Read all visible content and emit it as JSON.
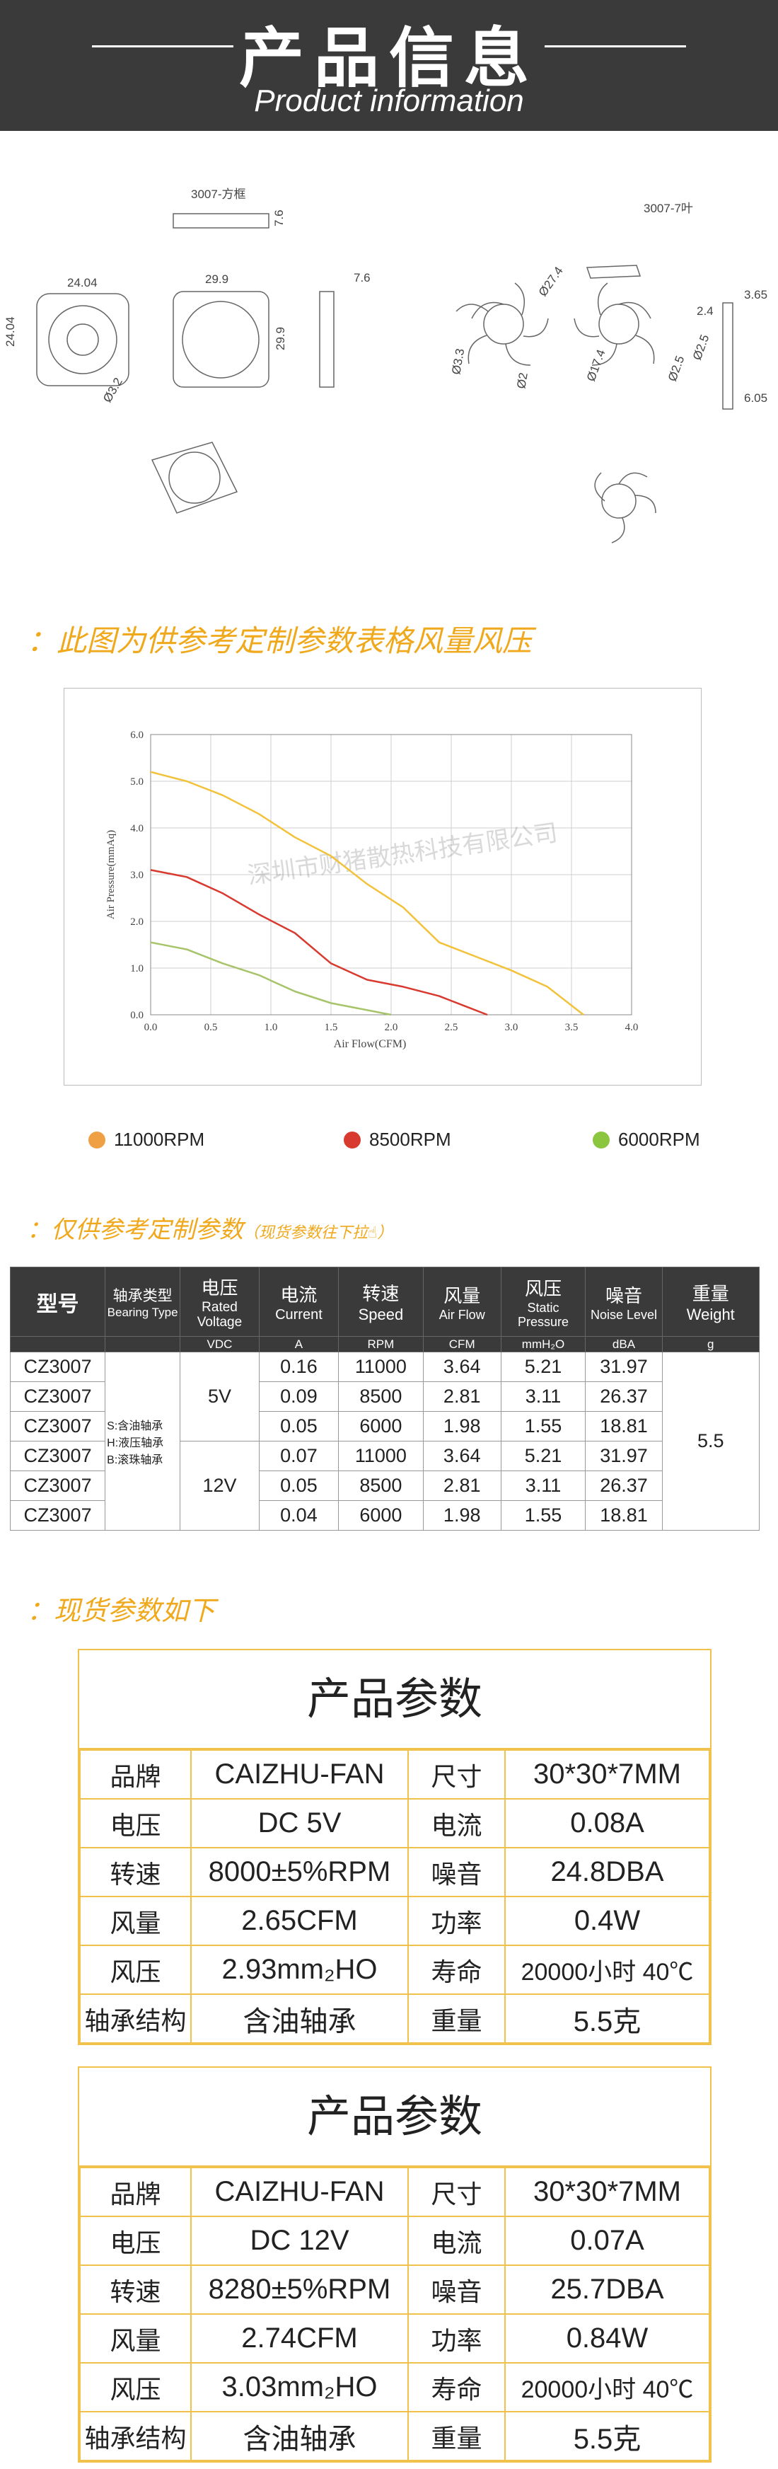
{
  "header": {
    "title": "产品信息",
    "subtitle": "Product information"
  },
  "drawing": {
    "model_label_left": "3007-方框",
    "model_label_right": "3007-7叶",
    "dims_left": [
      "24.04",
      "24.04",
      "29.9",
      "29.9",
      "7.6",
      "7.6",
      "Ø3.2"
    ],
    "dims_right": [
      "Ø27.4",
      "Ø3.3",
      "Ø2",
      "Ø17.4",
      "Ø2.5",
      "Ø2.5",
      "2.4",
      "3.65",
      "6.05"
    ]
  },
  "section1": {
    "title": "：此图为供参考定制参数表格风量风压"
  },
  "chart_data": {
    "type": "line",
    "xlabel": "Air Flow(CFM)",
    "ylabel": "Air Pressure(mmAq)",
    "xlim": [
      0,
      4.0
    ],
    "ylim": [
      0,
      6.0
    ],
    "xticks": [
      "0.0",
      "0.5",
      "1.0",
      "1.5",
      "2.0",
      "2.5",
      "3.0",
      "3.5",
      "4.0"
    ],
    "yticks": [
      "0.0",
      "1.0",
      "2.0",
      "3.0",
      "4.0",
      "5.0",
      "6.0"
    ],
    "grid": true,
    "watermark": "深圳市财猪散热科技有限公司",
    "series": [
      {
        "name": "11000RPM",
        "color": "#f2c23a",
        "x": [
          0.0,
          0.3,
          0.6,
          0.9,
          1.2,
          1.5,
          1.8,
          2.1,
          2.4,
          2.7,
          3.0,
          3.3,
          3.6
        ],
        "y": [
          5.2,
          5.0,
          4.7,
          4.3,
          3.8,
          3.4,
          2.8,
          2.3,
          1.55,
          1.25,
          0.95,
          0.6,
          0.0
        ]
      },
      {
        "name": "8500RPM",
        "color": "#d93a2f",
        "x": [
          0.0,
          0.3,
          0.6,
          0.9,
          1.2,
          1.5,
          1.8,
          2.1,
          2.4,
          2.6,
          2.8
        ],
        "y": [
          3.1,
          2.95,
          2.6,
          2.15,
          1.75,
          1.1,
          0.75,
          0.6,
          0.4,
          0.2,
          0.0
        ]
      },
      {
        "name": "6000RPM",
        "color": "#a7c46a",
        "x": [
          0.0,
          0.3,
          0.6,
          0.9,
          1.2,
          1.5,
          1.8,
          2.0
        ],
        "y": [
          1.55,
          1.4,
          1.1,
          0.85,
          0.5,
          0.25,
          0.1,
          0.0
        ]
      }
    ]
  },
  "legend": [
    {
      "label": "11000RPM",
      "color": "#f0a044"
    },
    {
      "label": "8500RPM",
      "color": "#d93a2f"
    },
    {
      "label": "6000RPM",
      "color": "#8cc63f"
    }
  ],
  "section2": {
    "title": "：仅供参考定制参数",
    "note": "（现货参数往下拉",
    "note_icon": "hand-pointer-icon"
  },
  "spec_table": {
    "headers": [
      {
        "cn": "型号",
        "en": "",
        "unit": ""
      },
      {
        "cn": "轴承类型",
        "en": "Bearing Type",
        "unit": ""
      },
      {
        "cn": "电压",
        "en": "Rated Voltage",
        "unit": "VDC"
      },
      {
        "cn": "电流",
        "en": "Current",
        "unit": "A"
      },
      {
        "cn": "转速",
        "en": "Speed",
        "unit": "RPM"
      },
      {
        "cn": "风量",
        "en": "Air Flow",
        "unit": "CFM"
      },
      {
        "cn": "风压",
        "en": "Static Pressure",
        "unit": "mmH₂O"
      },
      {
        "cn": "噪音",
        "en": "Noise Level",
        "unit": "dBA"
      },
      {
        "cn": "重量",
        "en": "Weight",
        "unit": "g"
      }
    ],
    "bearing_note": [
      "S:含油轴承",
      "H:液压轴承",
      "B:滚珠轴承"
    ],
    "voltages": [
      "5V",
      "12V"
    ],
    "weight": "5.5",
    "rows": [
      {
        "model": "CZ3007",
        "current": "0.16",
        "speed": "11000",
        "flow": "3.64",
        "pressure": "5.21",
        "noise": "31.97"
      },
      {
        "model": "CZ3007",
        "current": "0.09",
        "speed": "8500",
        "flow": "2.81",
        "pressure": "3.11",
        "noise": "26.37"
      },
      {
        "model": "CZ3007",
        "current": "0.05",
        "speed": "6000",
        "flow": "1.98",
        "pressure": "1.55",
        "noise": "18.81"
      },
      {
        "model": "CZ3007",
        "current": "0.07",
        "speed": "11000",
        "flow": "3.64",
        "pressure": "5.21",
        "noise": "31.97"
      },
      {
        "model": "CZ3007",
        "current": "0.05",
        "speed": "8500",
        "flow": "2.81",
        "pressure": "3.11",
        "noise": "26.37"
      },
      {
        "model": "CZ3007",
        "current": "0.04",
        "speed": "6000",
        "flow": "1.98",
        "pressure": "1.55",
        "noise": "18.81"
      }
    ]
  },
  "section3": {
    "title": "：现货参数如下"
  },
  "params": [
    {
      "title": "产品参数",
      "rows": [
        [
          "品牌",
          "CAIZHU-FAN",
          "尺寸",
          "30*30*7MM"
        ],
        [
          "电压",
          "DC 5V",
          "电流",
          "0.08A"
        ],
        [
          "转速",
          "8000±5%RPM",
          "噪音",
          "24.8DBA"
        ],
        [
          "风量",
          "2.65CFM",
          "功率",
          "0.4W"
        ],
        [
          "风压",
          "2.93mm₂HO",
          "寿命",
          "20000小时 40℃"
        ],
        [
          "轴承结构",
          "含油轴承",
          "重量",
          "5.5克"
        ]
      ]
    },
    {
      "title": "产品参数",
      "rows": [
        [
          "品牌",
          "CAIZHU-FAN",
          "尺寸",
          "30*30*7MM"
        ],
        [
          "电压",
          "DC 12V",
          "电流",
          "0.07A"
        ],
        [
          "转速",
          "8280±5%RPM",
          "噪音",
          "25.7DBA"
        ],
        [
          "风量",
          "2.74CFM",
          "功率",
          "0.84W"
        ],
        [
          "风压",
          "3.03mm₂HO",
          "寿命",
          "20000小时 40℃"
        ],
        [
          "轴承结构",
          "含油轴承",
          "重量",
          "5.5克"
        ]
      ]
    }
  ]
}
